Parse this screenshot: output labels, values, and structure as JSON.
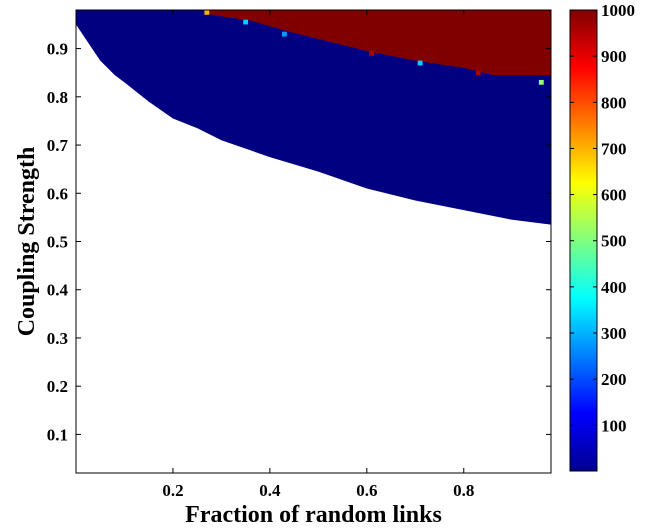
{
  "chart_data": {
    "type": "heatmap",
    "title": "",
    "xlabel": "Fraction of random links",
    "ylabel": "Coupling Strength",
    "xlim": [
      0.0,
      0.98
    ],
    "ylim": [
      0.02,
      0.98
    ],
    "x_ticks": [
      0.2,
      0.4,
      0.6,
      0.8
    ],
    "x_tick_labels": [
      "0.2",
      "0.4",
      "0.6",
      "0.8"
    ],
    "y_ticks": [
      0.1,
      0.2,
      0.3,
      0.4,
      0.5,
      0.6,
      0.7,
      0.8,
      0.9
    ],
    "y_tick_labels": [
      "0.1",
      "0.2",
      "0.3",
      "0.4",
      "0.5",
      "0.6",
      "0.7",
      "0.8",
      "0.9"
    ],
    "grid": false,
    "colormap": "jet",
    "colorbar": {
      "range": [
        1,
        1000
      ],
      "ticks": [
        100,
        200,
        300,
        400,
        500,
        600,
        700,
        800,
        900,
        1000
      ],
      "tick_labels": [
        "100",
        "200",
        "300",
        "400",
        "500",
        "600",
        "700",
        "800",
        "900",
        "1000"
      ],
      "position": "right"
    },
    "regions": {
      "no_data_color": "#ffffff",
      "sync_lower_boundary": [
        [
          0.0,
          0.95
        ],
        [
          0.02,
          0.92
        ],
        [
          0.05,
          0.875
        ],
        [
          0.08,
          0.845
        ],
        [
          0.1,
          0.83
        ],
        [
          0.15,
          0.79
        ],
        [
          0.2,
          0.755
        ],
        [
          0.25,
          0.735
        ],
        [
          0.3,
          0.71
        ],
        [
          0.4,
          0.675
        ],
        [
          0.5,
          0.645
        ],
        [
          0.6,
          0.61
        ],
        [
          0.7,
          0.585
        ],
        [
          0.8,
          0.565
        ],
        [
          0.9,
          0.545
        ],
        [
          0.98,
          0.535
        ]
      ],
      "sync_region_value": 1,
      "saturated_upper_boundary": [
        [
          0.26,
          0.98
        ],
        [
          0.28,
          0.97
        ],
        [
          0.36,
          0.958
        ],
        [
          0.44,
          0.935
        ],
        [
          0.52,
          0.915
        ],
        [
          0.6,
          0.895
        ],
        [
          0.7,
          0.875
        ],
        [
          0.8,
          0.86
        ],
        [
          0.86,
          0.845
        ],
        [
          0.98,
          0.845
        ]
      ],
      "saturated_region_value": 1000
    },
    "highlighted_cells": [
      {
        "x": 0.27,
        "y": 0.975,
        "value": 700
      },
      {
        "x": 0.35,
        "y": 0.955,
        "value": 330
      },
      {
        "x": 0.43,
        "y": 0.93,
        "value": 280
      },
      {
        "x": 0.61,
        "y": 0.89,
        "value": 950
      },
      {
        "x": 0.71,
        "y": 0.87,
        "value": 330
      },
      {
        "x": 0.83,
        "y": 0.85,
        "value": 950
      },
      {
        "x": 0.96,
        "y": 0.83,
        "value": 520
      }
    ]
  }
}
